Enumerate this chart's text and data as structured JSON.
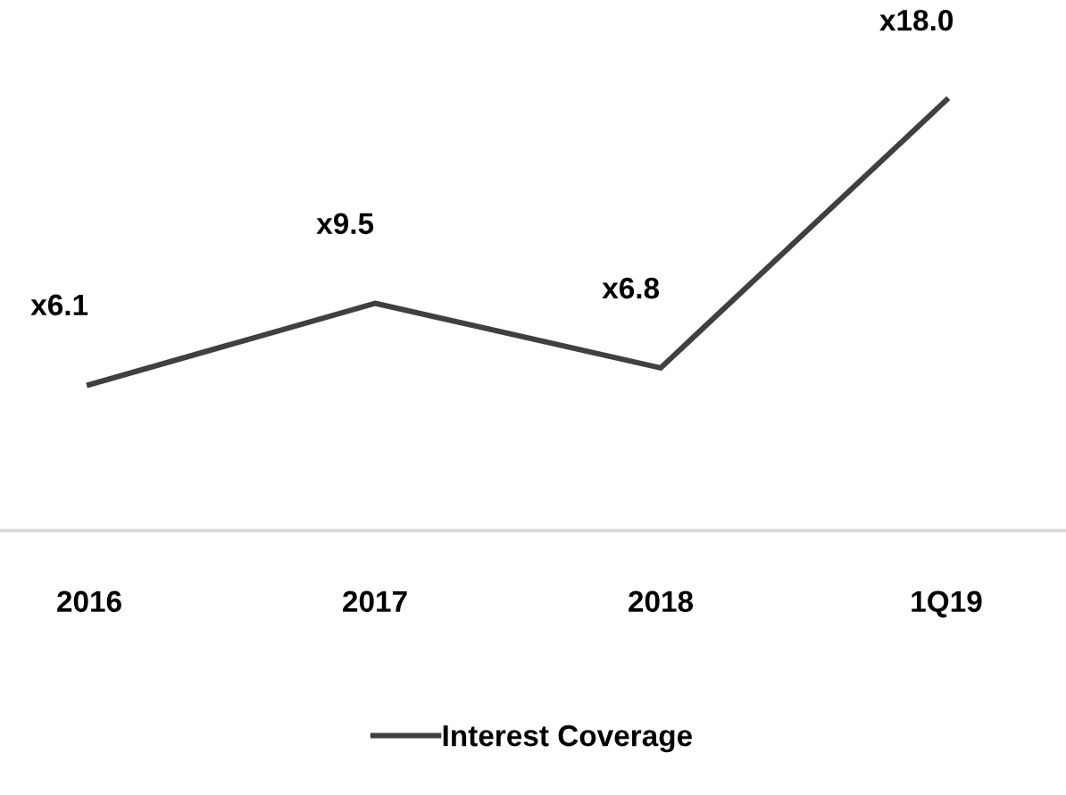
{
  "chart_data": {
    "type": "line",
    "categories": [
      "2016",
      "2017",
      "2018",
      "1Q19"
    ],
    "series": [
      {
        "name": "Interest Coverage",
        "color": "#404040",
        "values": [
          6.1,
          9.5,
          6.8,
          18.0
        ],
        "value_labels": [
          "x6.1",
          "x9.5",
          "x6.8",
          "x18.0"
        ]
      }
    ],
    "legend": "bottom",
    "grid": false,
    "marker": "none",
    "line_style": "solid"
  }
}
